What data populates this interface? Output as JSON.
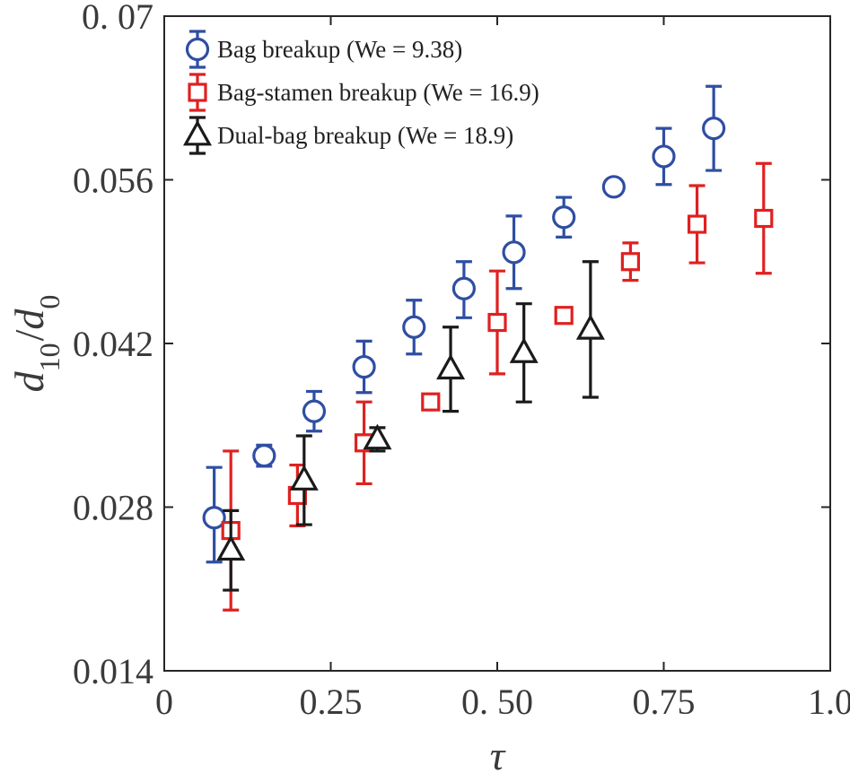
{
  "chart_data": {
    "type": "scatter",
    "xlabel": "τ",
    "ylabel": "d10/d0",
    "xlim": [
      0,
      1.0
    ],
    "ylim": [
      0.014,
      0.07
    ],
    "x_ticks": [
      {
        "value": 0,
        "label": "0"
      },
      {
        "value": 0.25,
        "label": "0.25"
      },
      {
        "value": 0.5,
        "label": "0. 50"
      },
      {
        "value": 0.75,
        "label": "0.75"
      },
      {
        "value": 1.0,
        "label": "1.0"
      }
    ],
    "y_ticks": [
      {
        "value": 0.014,
        "label": "0.014"
      },
      {
        "value": 0.028,
        "label": "0.028"
      },
      {
        "value": 0.042,
        "label": "0.042"
      },
      {
        "value": 0.056,
        "label": "0.056"
      },
      {
        "value": 0.07,
        "label": "0. 07"
      }
    ],
    "grid": false,
    "legend_position": "top-left",
    "series": [
      {
        "name": "Bag breakup (We = 9.38)",
        "marker": "circle",
        "color": "#2f4ea3",
        "points": [
          {
            "x": 0.075,
            "y": 0.0271,
            "err_low": 0.0038,
            "err_high": 0.0043
          },
          {
            "x": 0.15,
            "y": 0.0324,
            "err_low": 0.0009,
            "err_high": 0.0009
          },
          {
            "x": 0.225,
            "y": 0.0362,
            "err_low": 0.0017,
            "err_high": 0.0017
          },
          {
            "x": 0.3,
            "y": 0.04,
            "err_low": 0.0022,
            "err_high": 0.0022
          },
          {
            "x": 0.375,
            "y": 0.0434,
            "err_low": 0.0023,
            "err_high": 0.0023
          },
          {
            "x": 0.45,
            "y": 0.0467,
            "err_low": 0.0025,
            "err_high": 0.0023
          },
          {
            "x": 0.525,
            "y": 0.0498,
            "err_low": 0.0031,
            "err_high": 0.0031
          },
          {
            "x": 0.6,
            "y": 0.0528,
            "err_low": 0.0017,
            "err_high": 0.0017
          },
          {
            "x": 0.675,
            "y": 0.0554,
            "err_low": 0.0005,
            "err_high": 0.0005
          },
          {
            "x": 0.75,
            "y": 0.058,
            "err_low": 0.0024,
            "err_high": 0.0024
          },
          {
            "x": 0.825,
            "y": 0.0604,
            "err_low": 0.0036,
            "err_high": 0.0036
          }
        ]
      },
      {
        "name": "Bag-stamen breakup (We = 16.9)",
        "marker": "square",
        "color": "#e02020",
        "points": [
          {
            "x": 0.1,
            "y": 0.026,
            "err_low": 0.0068,
            "err_high": 0.0068
          },
          {
            "x": 0.2,
            "y": 0.029,
            "err_low": 0.0026,
            "err_high": 0.0026
          },
          {
            "x": 0.3,
            "y": 0.0335,
            "err_low": 0.0035,
            "err_high": 0.0035
          },
          {
            "x": 0.4,
            "y": 0.037,
            "err_low": 0.0005,
            "err_high": 0.0005
          },
          {
            "x": 0.5,
            "y": 0.0438,
            "err_low": 0.0044,
            "err_high": 0.0044
          },
          {
            "x": 0.6,
            "y": 0.0444,
            "err_low": 0.0005,
            "err_high": 0.0005
          },
          {
            "x": 0.7,
            "y": 0.049,
            "err_low": 0.0016,
            "err_high": 0.0016
          },
          {
            "x": 0.8,
            "y": 0.0522,
            "err_low": 0.0033,
            "err_high": 0.0033
          },
          {
            "x": 0.9,
            "y": 0.0527,
            "err_low": 0.0047,
            "err_high": 0.0047
          }
        ]
      },
      {
        "name": "Dual-bag breakup (We = 18.9)",
        "marker": "triangle",
        "color": "#1a1a1a",
        "points": [
          {
            "x": 0.1,
            "y": 0.0243,
            "err_low": 0.0034,
            "err_high": 0.0034
          },
          {
            "x": 0.21,
            "y": 0.0303,
            "err_low": 0.0038,
            "err_high": 0.0038
          },
          {
            "x": 0.32,
            "y": 0.0338,
            "err_low": 0.001,
            "err_high": 0.001
          },
          {
            "x": 0.43,
            "y": 0.0398,
            "err_low": 0.0036,
            "err_high": 0.0036
          },
          {
            "x": 0.54,
            "y": 0.0412,
            "err_low": 0.0042,
            "err_high": 0.0042
          },
          {
            "x": 0.64,
            "y": 0.0432,
            "err_low": 0.0058,
            "err_high": 0.0058
          }
        ]
      }
    ]
  }
}
